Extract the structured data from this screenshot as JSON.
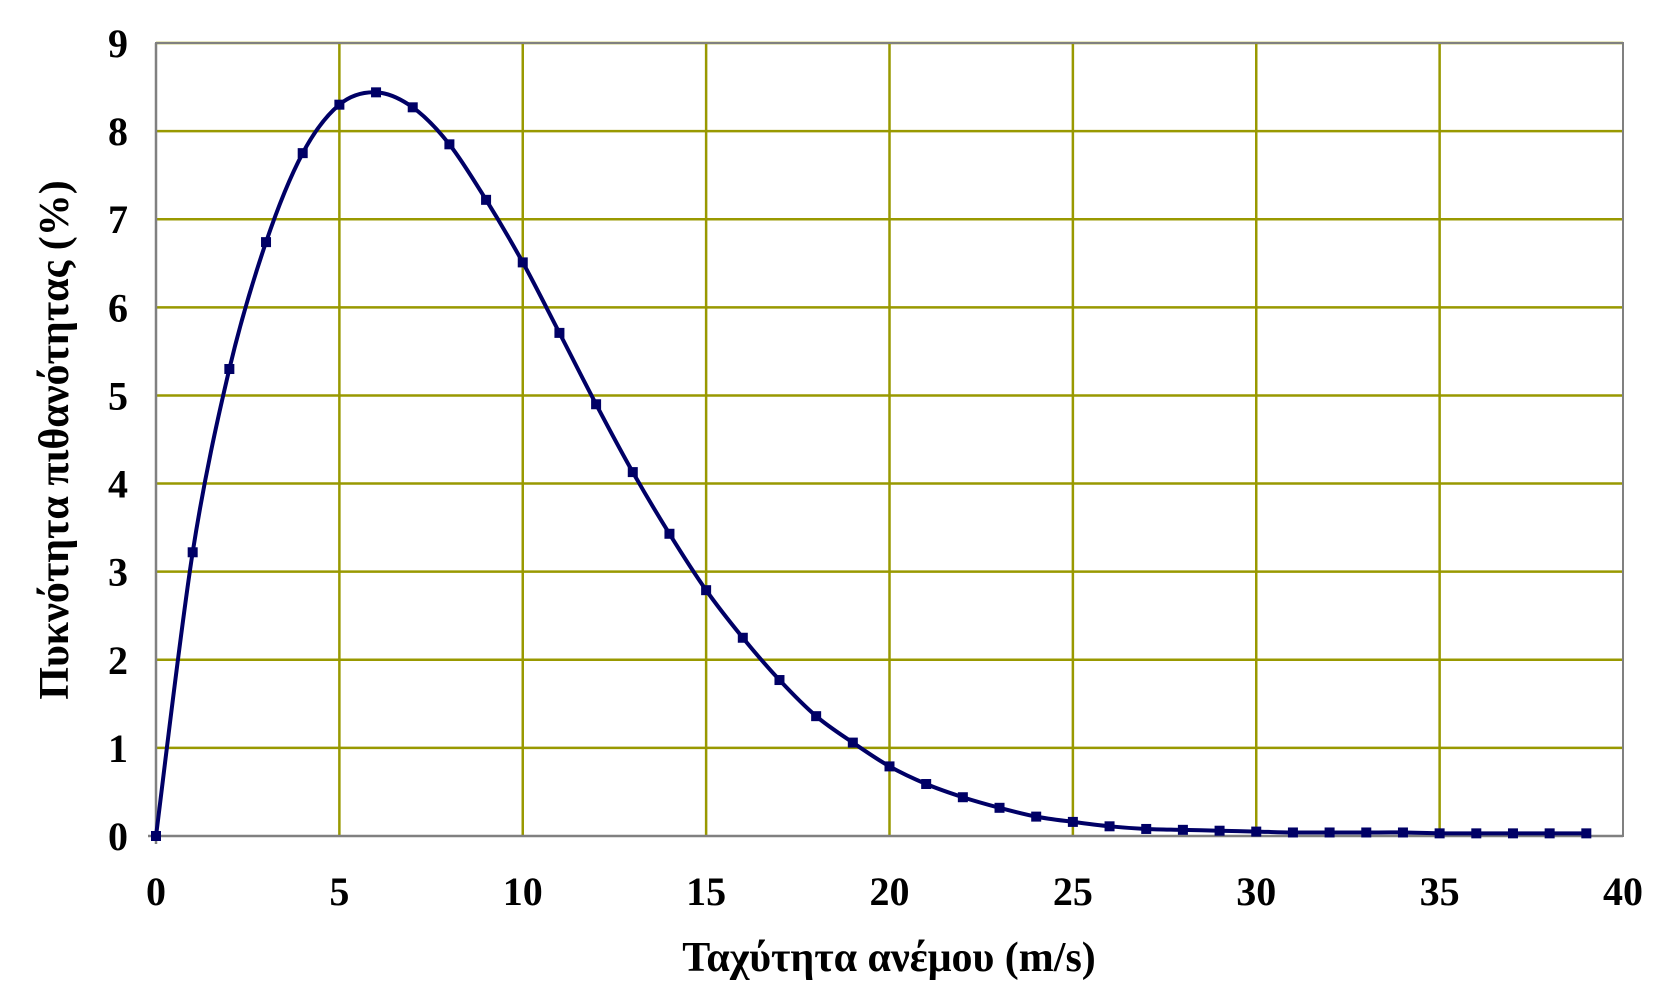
{
  "chart_data": {
    "type": "line",
    "title": "",
    "xlabel": "Ταχύτητα ανέμου (m/s)",
    "ylabel": "Πυκνότητα πιθανότητας (%)",
    "xlim": [
      0,
      40
    ],
    "ylim": [
      0,
      9
    ],
    "xticks": [
      "0",
      "5",
      "10",
      "15",
      "20",
      "25",
      "30",
      "35",
      "40"
    ],
    "yticks": [
      "0",
      "1",
      "2",
      "3",
      "4",
      "5",
      "6",
      "7",
      "8",
      "9"
    ],
    "grid": true,
    "legend": "none",
    "colors": {
      "line": "#000066",
      "grid": "#999900",
      "plot_border": "#808080"
    },
    "series": [
      {
        "marker": "square",
        "x": [
          0,
          1,
          2,
          3,
          4,
          5,
          6,
          7,
          8,
          9,
          10,
          11,
          12,
          13,
          14,
          15,
          16,
          17,
          18,
          19,
          20,
          21,
          22,
          23,
          24,
          25,
          26,
          27,
          28,
          29,
          30,
          31,
          32,
          33,
          34,
          35,
          36,
          37,
          38,
          39
        ],
        "y": [
          0,
          3.22,
          5.3,
          6.74,
          7.75,
          8.3,
          8.44,
          8.27,
          7.85,
          7.22,
          6.51,
          5.71,
          4.9,
          4.13,
          3.43,
          2.79,
          2.25,
          1.77,
          1.36,
          1.06,
          0.79,
          0.59,
          0.44,
          0.32,
          0.22,
          0.16,
          0.11,
          0.08,
          0.07,
          0.06,
          0.05,
          0.04,
          0.04,
          0.04,
          0.04,
          0.03,
          0.03,
          0.03,
          0.03,
          0.03
        ]
      }
    ]
  }
}
